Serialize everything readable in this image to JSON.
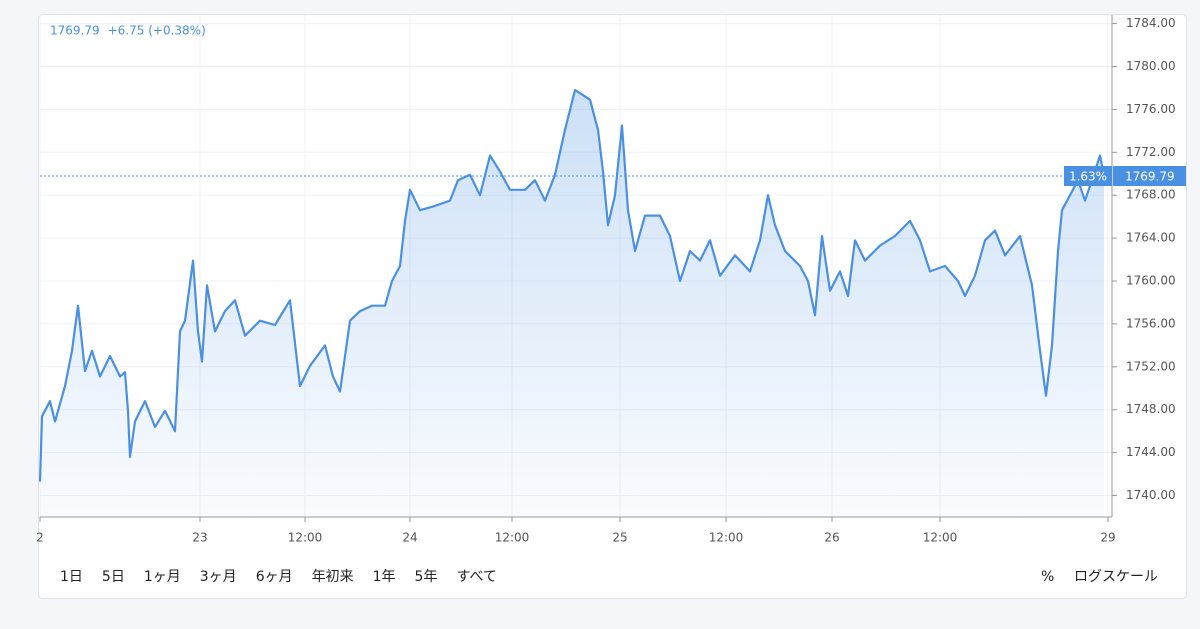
{
  "chart_data": {
    "type": "area",
    "change": "+6.75 (+0.38%)",
    "badge_percent": "1.63%",
    "series": [
      {
        "name": null,
        "color": "#4a90e2",
        "x": [
          0,
          2,
          10,
          15,
          25,
          32,
          38,
          45,
          52,
          60,
          70,
          80,
          85,
          88,
          90,
          95,
          105,
          115,
          125,
          135,
          140,
          145,
          153,
          158,
          162,
          167,
          175,
          185,
          195,
          205,
          220,
          235,
          250,
          260,
          270,
          285,
          293,
          300,
          310,
          320,
          332,
          345,
          352,
          360,
          365,
          370,
          380,
          395,
          410,
          418,
          430,
          440,
          450,
          460,
          470,
          485,
          495,
          505,
          515,
          525,
          535,
          542,
          550,
          558,
          563,
          568,
          575,
          582,
          588,
          595,
          605,
          620,
          630,
          640,
          650,
          660,
          670,
          680,
          695,
          710,
          720,
          728,
          735,
          745,
          760,
          768,
          775,
          782,
          790,
          800,
          808,
          815,
          825,
          840,
          855,
          870,
          880,
          890,
          905,
          918,
          925,
          935,
          945,
          955,
          965,
          980,
          992,
          1000,
          1006,
          1012,
          1018,
          1022,
          1030,
          1038,
          1045,
          1052,
          1060,
          1064
        ],
        "values": [
          1741.3,
          1747.4,
          1748.8,
          1746.9,
          1750.2,
          1753.5,
          1757.7,
          1751.6,
          1753.5,
          1751.1,
          1753,
          1751.1,
          1751.5,
          1747.9,
          1743.6,
          1746.9,
          1748.8,
          1746.4,
          1747.9,
          1746,
          1755.3,
          1756.3,
          1761.9,
          1755.3,
          1752.5,
          1759.6,
          1755.3,
          1757.2,
          1758.2,
          1754.9,
          1756.3,
          1755.9,
          1758.2,
          1750.2,
          1752.1,
          1754,
          1751.1,
          1749.7,
          1756.3,
          1757.2,
          1757.7,
          1757.7,
          1760,
          1761.4,
          1765.6,
          1768.5,
          1766.6,
          1767,
          1767.5,
          1769.4,
          1769.9,
          1768,
          1771.7,
          1770.2,
          1768.5,
          1768.5,
          1769.4,
          1767.5,
          1769.9,
          1774.1,
          1777.8,
          1777.4,
          1776.9,
          1774.1,
          1770.2,
          1765.2,
          1768,
          1774.5,
          1766.6,
          1762.8,
          1766.1,
          1766.1,
          1764.2,
          1760,
          1762.8,
          1761.9,
          1763.8,
          1760.5,
          1762.4,
          1760.9,
          1763.8,
          1768,
          1765.2,
          1762.8,
          1761.4,
          1760,
          1756.8,
          1764.2,
          1759.1,
          1760.9,
          1758.6,
          1763.8,
          1761.9,
          1763.3,
          1764.2,
          1765.6,
          1763.8,
          1760.9,
          1761.4,
          1760,
          1758.6,
          1760.5,
          1763.8,
          1764.7,
          1762.4,
          1764.2,
          1759.6,
          1753.5,
          1749.3,
          1754,
          1762.8,
          1766.6,
          1768,
          1769.4,
          1767.5,
          1769.4,
          1771.7,
          1769.79
        ]
      }
    ],
    "xlim": [
      0,
      1072
    ],
    "xticks": [
      {
        "value": 0,
        "label": "2"
      },
      {
        "value": 160,
        "label": "23"
      },
      {
        "value": 265,
        "label": "12:00"
      },
      {
        "value": 370,
        "label": "24"
      },
      {
        "value": 472,
        "label": "12:00"
      },
      {
        "value": 580,
        "label": "25"
      },
      {
        "value": 686,
        "label": "12:00"
      },
      {
        "value": 792,
        "label": "26"
      },
      {
        "value": 900,
        "label": "12:00"
      },
      {
        "value": 1068,
        "label": "29"
      }
    ],
    "ylim": [
      1738,
      1784.8
    ],
    "yticks": [
      {
        "value": 1740,
        "label": "1740.00"
      },
      {
        "value": 1744,
        "label": "1744.00"
      },
      {
        "value": 1748,
        "label": "1748.00"
      },
      {
        "value": 1752,
        "label": "1752.00"
      },
      {
        "value": 1756,
        "label": "1756.00"
      },
      {
        "value": 1760,
        "label": "1760.00"
      },
      {
        "value": 1764,
        "label": "1764.00"
      },
      {
        "value": 1768,
        "label": "1768.00"
      },
      {
        "value": 1772,
        "label": "1772.00"
      },
      {
        "value": 1776,
        "label": "1776.00"
      },
      {
        "value": 1780,
        "label": "1780.00"
      },
      {
        "value": 1784,
        "label": "1784.00"
      }
    ],
    "grid": true,
    "ranges": [
      "1日",
      "5日",
      "1ヶ月",
      "3ヶ月",
      "6ヶ月",
      "年初来",
      "1年",
      "5年",
      "すべて"
    ],
    "options": [
      "%",
      "ログスケール"
    ]
  }
}
